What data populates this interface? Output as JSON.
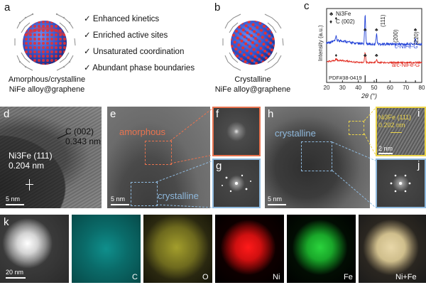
{
  "panel_labels": {
    "a": "a",
    "b": "b",
    "c": "c",
    "d": "d",
    "e": "e",
    "f": "f",
    "g": "g",
    "h": "h",
    "i": "i",
    "j": "j",
    "k": "k"
  },
  "panel_a": {
    "caption_line1": "Amorphous/crystalline",
    "caption_line2": "NiFe alloy@graphene",
    "bullets": [
      "Enhanced kinetics",
      "Enriched active sites",
      "Unsaturated coordination",
      "Abundant phase boundaries"
    ],
    "check_glyph": "✓"
  },
  "panel_b": {
    "caption_line1": "Crystalline",
    "caption_line2": "NiFe alloy@graphene"
  },
  "chart_data": {
    "type": "line",
    "xlabel": "2θ (°)",
    "ylabel": "Intensity (a.u.)",
    "xlim": [
      20,
      80
    ],
    "x_ticks": [
      20,
      30,
      40,
      50,
      60,
      70,
      80
    ],
    "legend": [
      {
        "symbol": "♣",
        "label": "Ni3Fe"
      },
      {
        "symbol": "♦",
        "label": "C (002)"
      }
    ],
    "peak_labels": [
      "(111)",
      "(200)",
      "(220)"
    ],
    "reference": "PDF#38-0419",
    "series": [
      {
        "name": "c-NiFe-G",
        "color": "#1f3fd6",
        "peaks": [
          {
            "x": 26,
            "h": 0.15
          },
          {
            "x": 44.3,
            "h": 1.0
          },
          {
            "x": 51.5,
            "h": 0.35
          },
          {
            "x": 76,
            "h": 0.18
          }
        ]
      },
      {
        "name": "a/c-NiFe-G",
        "color": "#e0261b",
        "peaks": [
          {
            "x": 26,
            "h": 0.12
          },
          {
            "x": 44.3,
            "h": 0.55
          },
          {
            "x": 51.5,
            "h": 0.15
          }
        ]
      }
    ]
  },
  "panel_d": {
    "c_label": "C (002)",
    "c_dist": "0.343 nm",
    "ni_label": "Ni3Fe (111)",
    "ni_dist": "0.204 nm",
    "scale": "5 nm"
  },
  "panel_e": {
    "amorphous": "amorphous",
    "crystalline": "crystalline",
    "scale": "5 nm"
  },
  "panel_h": {
    "crystalline": "crystalline",
    "scale": "5 nm"
  },
  "panel_i": {
    "label": "Ni3Fe (111)",
    "dist": "0.202 nm",
    "scale": "2 nm"
  },
  "panel_k": {
    "scale": "20 nm",
    "maps": [
      "C",
      "O",
      "Ni",
      "Fe",
      "Ni+Fe"
    ]
  },
  "colors": {
    "orange_box": "#e8734f",
    "blue_box": "#8fb9dd",
    "yellow_box": "#ecd54a",
    "map_C": "#15c7c3",
    "map_O": "#d8d23a",
    "map_Ni": "#ff1a1a",
    "map_Fe": "#25d13a",
    "map_NiFe": "#e8d7a8"
  }
}
